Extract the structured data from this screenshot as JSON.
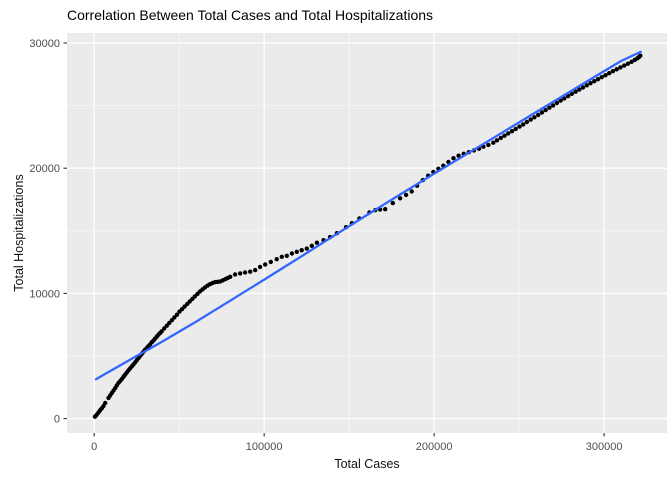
{
  "chart_data": {
    "type": "scatter",
    "title": "Correlation Between Total Cases and Total Hospitalizations",
    "xlabel": "Total Cases",
    "ylabel": "Total Hospitalizations",
    "xlim": [
      -16000,
      337000
    ],
    "ylim": [
      -1150,
      30800
    ],
    "x_ticks": [
      0,
      100000,
      200000,
      300000
    ],
    "x_tick_labels": [
      "0",
      "100000",
      "200000",
      "300000"
    ],
    "x_minor_ticks": [
      50000,
      150000,
      250000
    ],
    "y_ticks": [
      0,
      10000,
      20000,
      30000
    ],
    "y_tick_labels": [
      "0",
      "10000",
      "20000",
      "30000"
    ],
    "y_minor_ticks": [
      5000,
      15000,
      25000
    ],
    "grid": true,
    "legend": "none",
    "panel_bg": "#EBEBEB",
    "major_grid_color": "#FFFFFF",
    "minor_grid_color": "#F7F7F7",
    "point_color": "#000000",
    "smooth_line_color": "#3366FF",
    "tick_text_color": "#4D4D4D",
    "tick_mark_color": "#333333",
    "points": [
      [
        500,
        150
      ],
      [
        1500,
        300
      ],
      [
        2500,
        480
      ],
      [
        3500,
        660
      ],
      [
        4500,
        820
      ],
      [
        5500,
        1010
      ],
      [
        6500,
        1250
      ],
      [
        8400,
        1650
      ],
      [
        9400,
        1850
      ],
      [
        10400,
        2050
      ],
      [
        11400,
        2250
      ],
      [
        12400,
        2450
      ],
      [
        13300,
        2650
      ],
      [
        14300,
        2850
      ],
      [
        15300,
        3000
      ],
      [
        16300,
        3170
      ],
      [
        17300,
        3350
      ],
      [
        18200,
        3510
      ],
      [
        19200,
        3680
      ],
      [
        20200,
        3860
      ],
      [
        21200,
        4020
      ],
      [
        22200,
        4180
      ],
      [
        23100,
        4330
      ],
      [
        24100,
        4500
      ],
      [
        25100,
        4670
      ],
      [
        26100,
        4850
      ],
      [
        27100,
        5020
      ],
      [
        28100,
        5190
      ],
      [
        29000,
        5340
      ],
      [
        30000,
        5510
      ],
      [
        31000,
        5640
      ],
      [
        31900,
        5780
      ],
      [
        32900,
        5930
      ],
      [
        33900,
        6100
      ],
      [
        34900,
        6240
      ],
      [
        35800,
        6380
      ],
      [
        36800,
        6540
      ],
      [
        37800,
        6700
      ],
      [
        38700,
        6830
      ],
      [
        39700,
        6970
      ],
      [
        41200,
        7200
      ],
      [
        42700,
        7420
      ],
      [
        44200,
        7640
      ],
      [
        45700,
        7860
      ],
      [
        47200,
        8080
      ],
      [
        48700,
        8300
      ],
      [
        50200,
        8550
      ],
      [
        51700,
        8750
      ],
      [
        53200,
        8950
      ],
      [
        54700,
        9150
      ],
      [
        56200,
        9350
      ],
      [
        57700,
        9550
      ],
      [
        59200,
        9750
      ],
      [
        60700,
        9950
      ],
      [
        62200,
        10150
      ],
      [
        63700,
        10320
      ],
      [
        65200,
        10480
      ],
      [
        66700,
        10620
      ],
      [
        68200,
        10740
      ],
      [
        69700,
        10830
      ],
      [
        71200,
        10900
      ],
      [
        72700,
        10930
      ],
      [
        74200,
        10960
      ],
      [
        75700,
        11050
      ],
      [
        77200,
        11140
      ],
      [
        78600,
        11240
      ],
      [
        80000,
        11330
      ],
      [
        82900,
        11520
      ],
      [
        85900,
        11600
      ],
      [
        88800,
        11680
      ],
      [
        91800,
        11730
      ],
      [
        94700,
        11860
      ],
      [
        97600,
        12120
      ],
      [
        100600,
        12310
      ],
      [
        103900,
        12520
      ],
      [
        107400,
        12730
      ],
      [
        110400,
        12920
      ],
      [
        113300,
        13000
      ],
      [
        116300,
        13190
      ],
      [
        119200,
        13320
      ],
      [
        122100,
        13450
      ],
      [
        125100,
        13580
      ],
      [
        128000,
        13800
      ],
      [
        131000,
        14050
      ],
      [
        134900,
        14250
      ],
      [
        138800,
        14500
      ],
      [
        142800,
        14810
      ],
      [
        148200,
        15290
      ],
      [
        151600,
        15610
      ],
      [
        156000,
        15980
      ],
      [
        161900,
        16460
      ],
      [
        165300,
        16650
      ],
      [
        168200,
        16700
      ],
      [
        171200,
        16730
      ],
      [
        175700,
        17210
      ],
      [
        180000,
        17600
      ],
      [
        183500,
        17870
      ],
      [
        186800,
        18150
      ],
      [
        190000,
        18600
      ],
      [
        193400,
        19050
      ],
      [
        196500,
        19400
      ],
      [
        199500,
        19700
      ],
      [
        202500,
        19950
      ],
      [
        205400,
        20200
      ],
      [
        208400,
        20500
      ],
      [
        211400,
        20800
      ],
      [
        214400,
        21000
      ],
      [
        217400,
        21150
      ],
      [
        220400,
        21280
      ],
      [
        223400,
        21420
      ],
      [
        226400,
        21560
      ],
      [
        229000,
        21720
      ],
      [
        231900,
        21860
      ],
      [
        234800,
        22040
      ],
      [
        237000,
        22230
      ],
      [
        239200,
        22420
      ],
      [
        241400,
        22600
      ],
      [
        243600,
        22780
      ],
      [
        245800,
        22960
      ],
      [
        248000,
        23140
      ],
      [
        250200,
        23320
      ],
      [
        252400,
        23500
      ],
      [
        254600,
        23690
      ],
      [
        256800,
        23880
      ],
      [
        259000,
        24070
      ],
      [
        261200,
        24260
      ],
      [
        263400,
        24450
      ],
      [
        265600,
        24640
      ],
      [
        267800,
        24830
      ],
      [
        270000,
        25020
      ],
      [
        272200,
        25210
      ],
      [
        274400,
        25400
      ],
      [
        276600,
        25580
      ],
      [
        278800,
        25760
      ],
      [
        281000,
        25940
      ],
      [
        283200,
        26110
      ],
      [
        285400,
        26280
      ],
      [
        287600,
        26450
      ],
      [
        289800,
        26620
      ],
      [
        292000,
        26790
      ],
      [
        294200,
        26950
      ],
      [
        296400,
        27110
      ],
      [
        298600,
        27270
      ],
      [
        300800,
        27430
      ],
      [
        303000,
        27590
      ],
      [
        305200,
        27750
      ],
      [
        307400,
        27900
      ],
      [
        309600,
        28050
      ],
      [
        311800,
        28200
      ],
      [
        314000,
        28350
      ],
      [
        316200,
        28500
      ],
      [
        318000,
        28650
      ],
      [
        319500,
        28780
      ],
      [
        320500,
        28880
      ],
      [
        321300,
        28990
      ]
    ],
    "trend_line": [
      [
        1000,
        3150
      ],
      [
        20000,
        4620
      ],
      [
        40000,
        6150
      ],
      [
        60000,
        7750
      ],
      [
        80000,
        9420
      ],
      [
        100000,
        11100
      ],
      [
        120000,
        12800
      ],
      [
        140000,
        14520
      ],
      [
        160000,
        16220
      ],
      [
        180000,
        17900
      ],
      [
        200000,
        19560
      ],
      [
        220000,
        21200
      ],
      [
        240000,
        22840
      ],
      [
        260000,
        24480
      ],
      [
        280000,
        26120
      ],
      [
        300000,
        27760
      ],
      [
        310000,
        28560
      ],
      [
        321500,
        29300
      ]
    ]
  }
}
